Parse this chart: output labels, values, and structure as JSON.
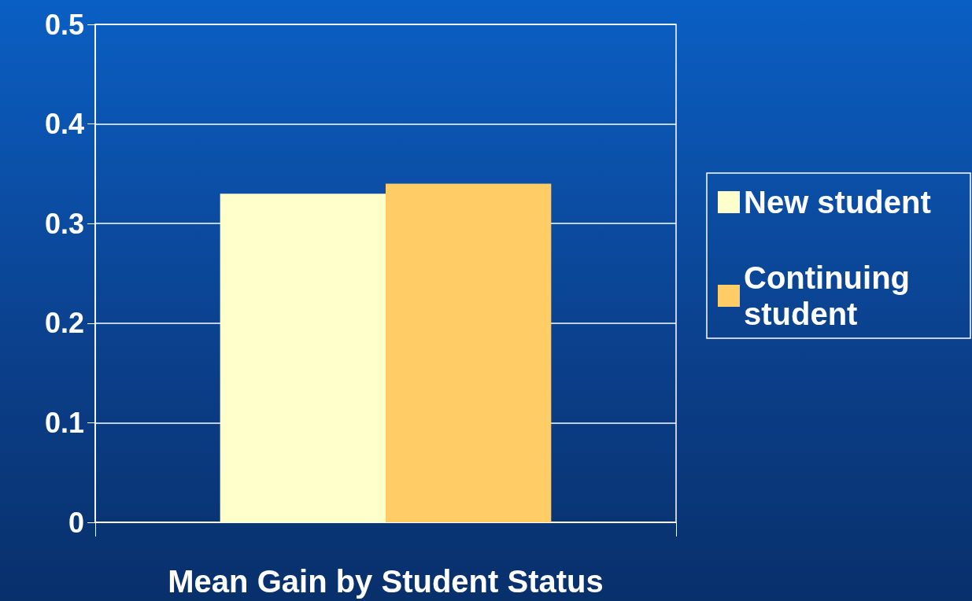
{
  "chart_data": {
    "type": "bar",
    "xlabel": "Mean Gain by Student Status",
    "categories": [
      null
    ],
    "series": [
      {
        "name": "New student",
        "color": "#ffffcc",
        "values": [
          0.33
        ]
      },
      {
        "name": "Continuing student",
        "color": "#ffcc66",
        "values": [
          0.34
        ]
      }
    ],
    "ylim": [
      0,
      0.5
    ],
    "yticks": [
      0,
      0.1,
      0.2,
      0.3,
      0.4,
      0.5
    ],
    "grid": "y",
    "legend": "right"
  }
}
